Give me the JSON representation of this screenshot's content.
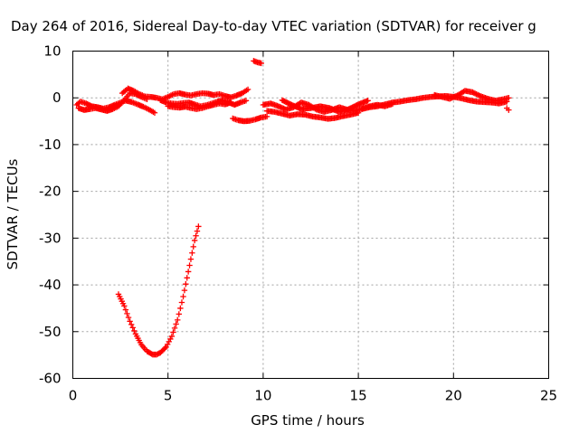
{
  "chart_data": {
    "type": "scatter",
    "title": "Day 264 of 2016, Sidereal Day-to-day VTEC variation (SDTVAR) for receiver g",
    "xlabel": "GPS time / hours",
    "ylabel": "SDTVAR / TECUs",
    "xlim": [
      0,
      25
    ],
    "ylim": [
      -60,
      10
    ],
    "xticks": [
      "0",
      "5",
      "10",
      "15",
      "20",
      "25"
    ],
    "yticks": [
      "10",
      "0",
      "-10",
      "-20",
      "-30",
      "-40",
      "-50",
      "-60"
    ],
    "grid": true,
    "marker": "plus",
    "color": "#ff0000",
    "series": [
      {
        "x": [
          0.2,
          0.4,
          0.7,
          1.0,
          1.3,
          1.6,
          1.9,
          2.2,
          2.5,
          2.8,
          3.1,
          3.4,
          3.7,
          4.0,
          4.3
        ],
        "y": [
          -1.5,
          -0.8,
          -1.2,
          -1.8,
          -2.0,
          -2.3,
          -2.0,
          -1.5,
          -1.0,
          -0.6,
          -0.9,
          -1.4,
          -1.9,
          -2.5,
          -3.2
        ]
      },
      {
        "x": [
          0.3,
          0.6,
          0.9,
          1.2,
          1.5,
          1.8,
          2.1,
          2.4,
          2.7,
          3.0,
          3.3,
          3.6,
          3.9
        ],
        "y": [
          -2.2,
          -2.6,
          -2.4,
          -2.2,
          -2.5,
          -2.8,
          -2.4,
          -1.8,
          -0.5,
          1.0,
          0.8,
          0.2,
          -0.3
        ]
      },
      {
        "x": [
          2.6,
          2.9,
          3.2,
          3.5,
          3.8,
          4.1,
          4.4,
          4.7,
          5.0,
          5.3,
          5.6,
          5.9,
          6.2,
          6.5,
          6.8,
          7.1,
          7.4,
          7.7,
          8.0,
          8.3,
          8.6,
          8.9,
          9.2
        ],
        "y": [
          1.0,
          2.0,
          1.5,
          0.8,
          0.3,
          0.2,
          0.0,
          -0.3,
          0.2,
          0.8,
          1.0,
          0.7,
          0.5,
          0.8,
          1.0,
          0.9,
          0.6,
          0.8,
          0.4,
          0.1,
          0.5,
          1.0,
          1.8
        ]
      },
      {
        "x": [
          4.6,
          4.9,
          5.2,
          5.5,
          5.8,
          6.1,
          6.4,
          6.7,
          7.0,
          7.3,
          7.6,
          7.9,
          8.2,
          8.5,
          8.8,
          9.1
        ],
        "y": [
          -0.5,
          -1.0,
          -1.2,
          -1.3,
          -1.1,
          -1.0,
          -1.4,
          -1.8,
          -1.6,
          -1.2,
          -0.8,
          -0.5,
          -1.0,
          -1.5,
          -1.0,
          -0.6
        ]
      },
      {
        "x": [
          5.0,
          5.3,
          5.6,
          5.9,
          6.2,
          6.5,
          6.8,
          7.1,
          7.4,
          7.7,
          8.0,
          8.3
        ],
        "y": [
          -1.8,
          -2.0,
          -2.1,
          -1.9,
          -2.2,
          -2.4,
          -2.2,
          -1.8,
          -1.5,
          -1.2,
          -1.4,
          -1.0
        ]
      },
      {
        "x": [
          8.4,
          8.7,
          9.0,
          9.3,
          9.6,
          9.9,
          10.2
        ],
        "y": [
          -4.4,
          -4.8,
          -5.0,
          -4.9,
          -4.6,
          -4.2,
          -4.0
        ]
      },
      {
        "x": [
          9.5,
          9.7,
          9.9
        ],
        "y": [
          7.9,
          7.6,
          7.4
        ]
      },
      {
        "x": [
          10.0,
          10.4,
          10.8,
          11.2,
          11.6,
          12.0,
          12.4,
          12.8,
          13.2,
          13.6,
          14.0,
          14.4,
          14.8,
          15.2,
          15.6,
          16.0,
          16.4,
          16.8
        ],
        "y": [
          -1.5,
          -1.2,
          -1.8,
          -2.5,
          -2.0,
          -1.0,
          -1.5,
          -2.5,
          -3.0,
          -2.6,
          -2.0,
          -2.5,
          -2.8,
          -2.3,
          -1.8,
          -1.5,
          -1.8,
          -1.3
        ]
      },
      {
        "x": [
          10.2,
          10.6,
          11.0,
          11.4,
          11.8,
          12.2,
          12.6,
          13.0,
          13.4,
          13.8,
          14.2,
          14.6,
          15.0
        ],
        "y": [
          -2.8,
          -3.0,
          -3.4,
          -3.8,
          -3.5,
          -3.6,
          -4.0,
          -4.2,
          -4.5,
          -4.3,
          -3.9,
          -3.6,
          -3.2
        ]
      },
      {
        "x": [
          11.0,
          11.5,
          12.0,
          12.5,
          13.0,
          13.5,
          14.0,
          14.5,
          15.0,
          15.5
        ],
        "y": [
          -0.5,
          -1.5,
          -2.4,
          -2.2,
          -1.8,
          -2.2,
          -3.0,
          -2.4,
          -1.4,
          -0.6
        ]
      },
      {
        "x": [
          15.2,
          15.6,
          16.0,
          16.4,
          16.8,
          17.2,
          17.6,
          18.0,
          18.4,
          18.8,
          19.2,
          19.6,
          20.0,
          20.4,
          20.8,
          21.2,
          21.6,
          22.0,
          22.4,
          22.8
        ],
        "y": [
          -2.4,
          -2.0,
          -1.8,
          -1.4,
          -1.0,
          -0.8,
          -0.5,
          -0.3,
          0.0,
          0.2,
          0.3,
          0.4,
          0.2,
          -0.1,
          -0.5,
          -0.8,
          -0.9,
          -1.0,
          -1.2,
          -0.8
        ]
      },
      {
        "x": [
          19.0,
          19.4,
          19.8,
          20.2,
          20.6,
          21.0,
          21.4,
          21.8,
          22.2,
          22.6,
          22.9
        ],
        "y": [
          0.6,
          0.2,
          -0.2,
          0.5,
          1.5,
          1.2,
          0.4,
          -0.2,
          -0.6,
          -0.3,
          0.0
        ]
      },
      {
        "x": [
          22.8,
          22.9
        ],
        "y": [
          -2.2,
          -2.6
        ]
      },
      {
        "x": [
          2.4,
          2.7,
          3.0,
          3.3,
          3.6,
          3.9,
          4.2,
          4.4,
          4.6,
          4.9,
          5.2,
          5.5,
          5.8,
          6.0,
          6.2,
          6.4,
          6.6
        ],
        "y": [
          -42.0,
          -44.5,
          -47.8,
          -50.5,
          -52.8,
          -54.2,
          -54.9,
          -54.9,
          -54.5,
          -53.3,
          -51.0,
          -47.5,
          -42.5,
          -38.5,
          -34.5,
          -30.5,
          -27.5
        ]
      }
    ]
  }
}
